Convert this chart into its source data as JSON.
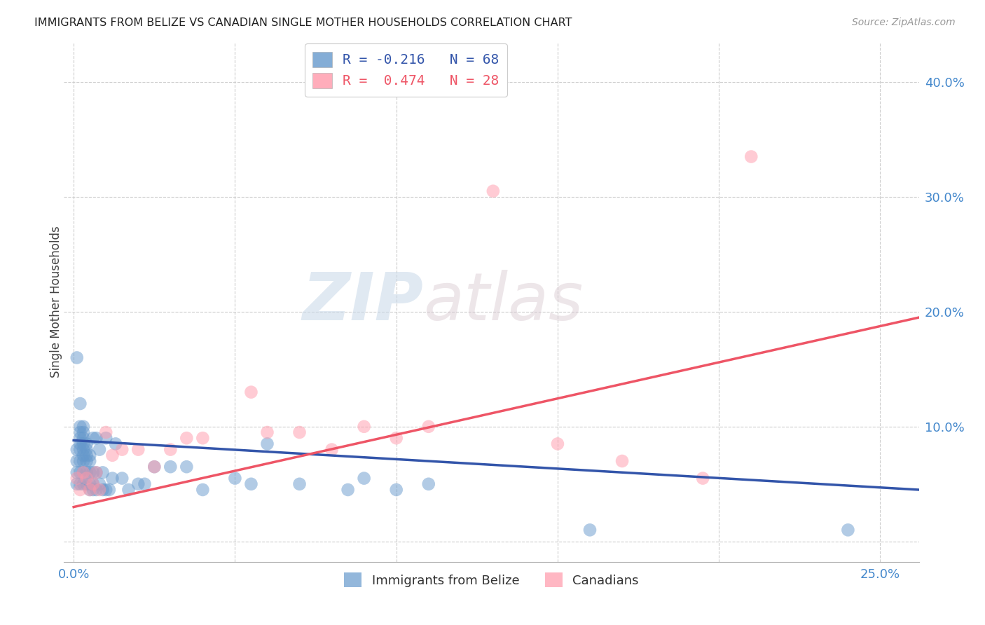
{
  "title": "IMMIGRANTS FROM BELIZE VS CANADIAN SINGLE MOTHER HOUSEHOLDS CORRELATION CHART",
  "source": "Source: ZipAtlas.com",
  "ylabel_label": "Single Mother Households",
  "xlim": [
    -0.003,
    0.262
  ],
  "ylim": [
    -0.018,
    0.435
  ],
  "blue_R": -0.216,
  "blue_N": 68,
  "pink_R": 0.474,
  "pink_N": 28,
  "blue_color": "#6699cc",
  "pink_color": "#ff99aa",
  "blue_line_color": "#3355aa",
  "pink_line_color": "#ee5566",
  "watermark_zip": "ZIP",
  "watermark_atlas": "atlas",
  "blue_scatter_x": [
    0.001,
    0.001,
    0.001,
    0.001,
    0.001,
    0.002,
    0.002,
    0.002,
    0.002,
    0.002,
    0.002,
    0.002,
    0.002,
    0.002,
    0.003,
    0.003,
    0.003,
    0.003,
    0.003,
    0.003,
    0.003,
    0.003,
    0.003,
    0.004,
    0.004,
    0.004,
    0.004,
    0.004,
    0.004,
    0.005,
    0.005,
    0.005,
    0.005,
    0.005,
    0.006,
    0.006,
    0.006,
    0.006,
    0.007,
    0.007,
    0.007,
    0.008,
    0.008,
    0.009,
    0.009,
    0.01,
    0.01,
    0.011,
    0.012,
    0.013,
    0.015,
    0.017,
    0.02,
    0.022,
    0.025,
    0.03,
    0.035,
    0.04,
    0.05,
    0.055,
    0.06,
    0.07,
    0.085,
    0.09,
    0.1,
    0.11,
    0.16,
    0.24
  ],
  "blue_scatter_y": [
    0.05,
    0.06,
    0.07,
    0.08,
    0.16,
    0.05,
    0.06,
    0.07,
    0.08,
    0.085,
    0.09,
    0.095,
    0.1,
    0.12,
    0.05,
    0.06,
    0.07,
    0.075,
    0.08,
    0.085,
    0.09,
    0.095,
    0.1,
    0.05,
    0.06,
    0.07,
    0.075,
    0.08,
    0.085,
    0.045,
    0.05,
    0.06,
    0.07,
    0.075,
    0.045,
    0.05,
    0.06,
    0.09,
    0.045,
    0.06,
    0.09,
    0.05,
    0.08,
    0.045,
    0.06,
    0.045,
    0.09,
    0.045,
    0.055,
    0.085,
    0.055,
    0.045,
    0.05,
    0.05,
    0.065,
    0.065,
    0.065,
    0.045,
    0.055,
    0.05,
    0.085,
    0.05,
    0.045,
    0.055,
    0.045,
    0.05,
    0.01,
    0.01
  ],
  "pink_scatter_x": [
    0.001,
    0.002,
    0.003,
    0.004,
    0.005,
    0.006,
    0.007,
    0.008,
    0.01,
    0.012,
    0.015,
    0.02,
    0.025,
    0.03,
    0.035,
    0.04,
    0.055,
    0.06,
    0.07,
    0.08,
    0.09,
    0.1,
    0.11,
    0.13,
    0.15,
    0.17,
    0.195,
    0.21
  ],
  "pink_scatter_y": [
    0.055,
    0.045,
    0.06,
    0.055,
    0.045,
    0.05,
    0.06,
    0.045,
    0.095,
    0.075,
    0.08,
    0.08,
    0.065,
    0.08,
    0.09,
    0.09,
    0.13,
    0.095,
    0.095,
    0.08,
    0.1,
    0.09,
    0.1,
    0.305,
    0.085,
    0.07,
    0.055,
    0.335
  ],
  "blue_line_x": [
    0.0,
    0.262
  ],
  "blue_line_y": [
    0.088,
    0.045
  ],
  "pink_line_x": [
    0.0,
    0.262
  ],
  "pink_line_y": [
    0.03,
    0.195
  ],
  "yticks": [
    0.0,
    0.1,
    0.2,
    0.3,
    0.4
  ],
  "ytick_labels": [
    "",
    "10.0%",
    "20.0%",
    "30.0%",
    "40.0%"
  ],
  "xtick_positions": [
    0.0,
    0.25
  ],
  "xtick_labels": [
    "0.0%",
    "25.0%"
  ],
  "grid_yticks": [
    0.0,
    0.1,
    0.2,
    0.3,
    0.4
  ],
  "grid_xticks": [
    0.0,
    0.05,
    0.1,
    0.15,
    0.2,
    0.25
  ]
}
